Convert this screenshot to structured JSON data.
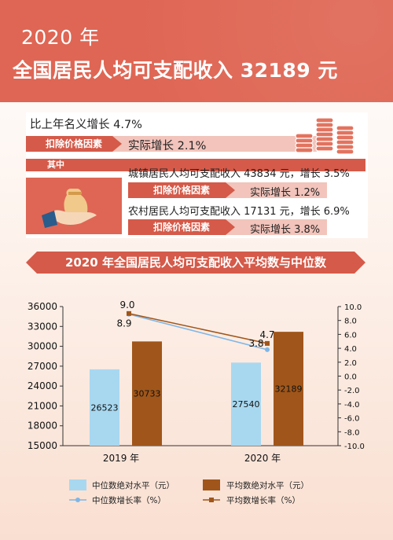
{
  "header": {
    "year": "2020 年",
    "title": "全国居民人均可支配收入 32189 元"
  },
  "summary": {
    "nominal_growth": "比上年名义增长 4.7%",
    "deduct_label": "扣除价格因素",
    "real_growth": "实际增长 2.1%",
    "of_which": "其中",
    "urban": "城镇居民人均可支配收入 43834 元，增长 3.5%",
    "urban_deduct": "扣除价格因素",
    "urban_real": "实际增长 1.2%",
    "rural": "农村居民人均可支配收入 17131 元，增长 6.9%",
    "rural_deduct": "扣除价格因素",
    "rural_real": "实际增长 3.8%"
  },
  "colors": {
    "header_bg": "#df6654",
    "accent": "#d55a49",
    "median_bar": "#a8d8f0",
    "mean_bar": "#a0561a",
    "median_line": "#7fb6e6",
    "mean_line": "#a0561a"
  },
  "chart_data": {
    "type": "bar",
    "title": "2020 年全国居民人均可支配收入平均数与中位数",
    "categories": [
      "2019 年",
      "2020 年"
    ],
    "series": [
      {
        "name": "中位数绝对水平（元）",
        "kind": "bar",
        "axis": "left",
        "values": [
          26523,
          27540
        ],
        "labels": [
          "26523",
          "27540"
        ]
      },
      {
        "name": "平均数绝对水平（元）",
        "kind": "bar",
        "axis": "left",
        "values": [
          30733,
          32189
        ],
        "labels": [
          "30733",
          "32189"
        ]
      },
      {
        "name": "中位数增长率（%）",
        "kind": "line",
        "axis": "right",
        "values": [
          8.9,
          3.8
        ],
        "labels": [
          "8.9",
          "3.8"
        ]
      },
      {
        "name": "平均数增长率（%）",
        "kind": "line",
        "axis": "right",
        "values": [
          9.0,
          4.7
        ],
        "labels": [
          "9.0",
          "4.7"
        ]
      }
    ],
    "left_axis": {
      "min": 15000,
      "max": 36000,
      "ticks": [
        "15000",
        "18000",
        "21000",
        "24000",
        "27000",
        "30000",
        "33000",
        "36000"
      ]
    },
    "right_axis": {
      "min": -10,
      "max": 10,
      "ticks": [
        "-10.0",
        "-8.0",
        "-6.0",
        "-4.0",
        "-2.0",
        "0.0",
        "2.0",
        "4.0",
        "6.0",
        "8.0",
        "10.0"
      ]
    },
    "legend_position": "bottom",
    "grid": false
  }
}
